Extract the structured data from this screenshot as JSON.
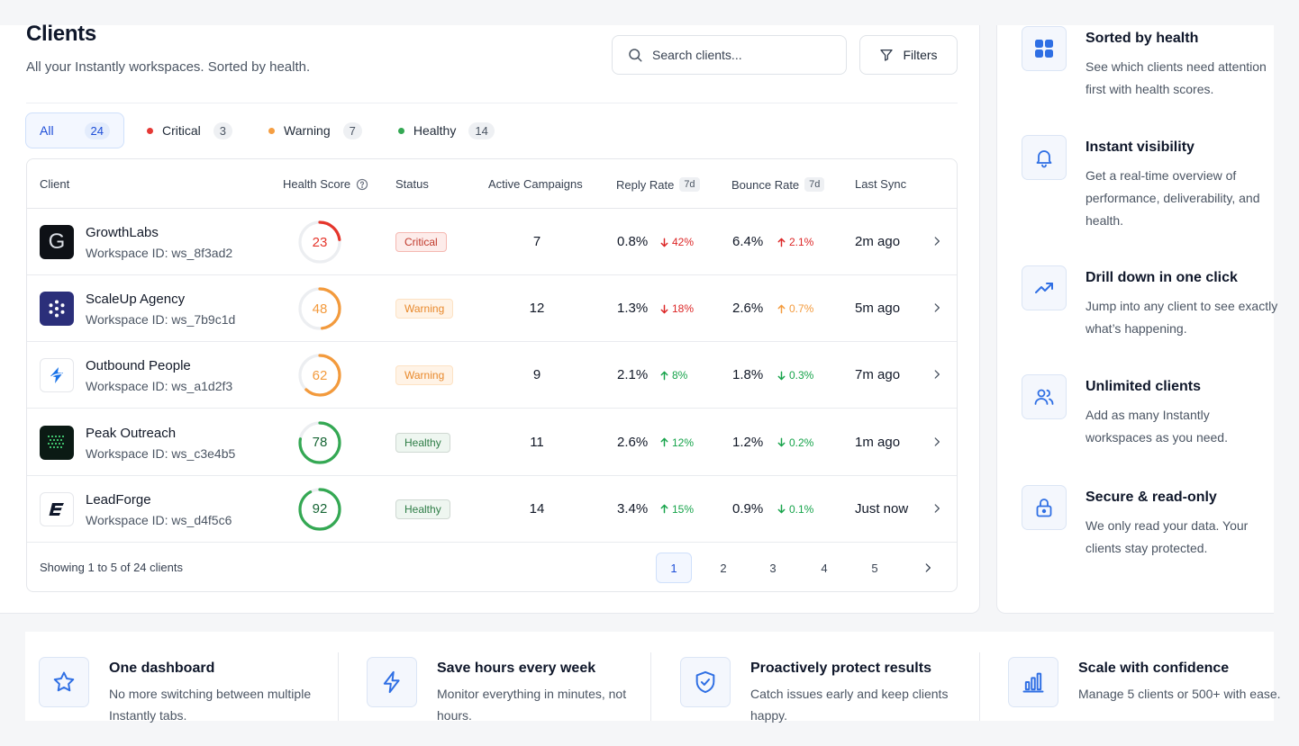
{
  "header": {
    "title": "Clients",
    "subtitle": "All your Instantly workspaces. Sorted by health.",
    "search_placeholder": "Search clients...",
    "filters_label": "Filters"
  },
  "tabs": [
    {
      "label": "All",
      "count": "24",
      "dot": ""
    },
    {
      "label": "Critical",
      "count": "3",
      "dot": "#e53935"
    },
    {
      "label": "Warning",
      "count": "7",
      "dot": "#f59e42"
    },
    {
      "label": "Healthy",
      "count": "14",
      "dot": "#34a853"
    }
  ],
  "table": {
    "columns": {
      "client": "Client",
      "health": "Health Score",
      "status": "Status",
      "campaigns": "Active Campaigns",
      "reply": "Reply Rate",
      "reply_period": "7d",
      "bounce": "Bounce Rate",
      "bounce_period": "7d",
      "sync": "Last Sync"
    },
    "rows": [
      {
        "name": "GrowthLabs",
        "workspace": "Workspace ID: ws_8f3ad2",
        "logo": "growthlabs-logo",
        "score": "23",
        "score_value": 23,
        "score_color": "#e5352b",
        "status": "Critical",
        "campaigns": "7",
        "reply": "0.8%",
        "reply_delta": "42%",
        "reply_dir": "down",
        "reply_color": "#dc2626",
        "bounce": "6.4%",
        "bounce_delta": "2.1%",
        "bounce_dir": "up",
        "bounce_color": "#dc2626",
        "sync": "2m ago"
      },
      {
        "name": "ScaleUp Agency",
        "workspace": "Workspace ID: ws_7b9c1d",
        "logo": "scaleup-logo",
        "score": "48",
        "score_value": 48,
        "score_color": "#f39a3c",
        "status": "Warning",
        "campaigns": "12",
        "reply": "1.3%",
        "reply_delta": "18%",
        "reply_dir": "down",
        "reply_color": "#dc2626",
        "bounce": "2.6%",
        "bounce_delta": "0.7%",
        "bounce_dir": "up",
        "bounce_color": "#f39a3c",
        "sync": "5m ago"
      },
      {
        "name": "Outbound People",
        "workspace": "Workspace ID: ws_a1d2f3",
        "logo": "outbound-logo",
        "score": "62",
        "score_value": 62,
        "score_color": "#f39a3c",
        "status": "Warning",
        "campaigns": "9",
        "reply": "2.1%",
        "reply_delta": "8%",
        "reply_dir": "up",
        "reply_color": "#16a34a",
        "bounce": "1.8%",
        "bounce_delta": "0.3%",
        "bounce_dir": "down",
        "bounce_color": "#16a34a",
        "sync": "7m ago"
      },
      {
        "name": "Peak Outreach",
        "workspace": "Workspace ID: ws_c3e4b5",
        "logo": "peak-logo",
        "score": "78",
        "score_value": 78,
        "score_color": "#34a853",
        "status": "Healthy",
        "campaigns": "11",
        "reply": "2.6%",
        "reply_delta": "12%",
        "reply_dir": "up",
        "reply_color": "#16a34a",
        "bounce": "1.2%",
        "bounce_delta": "0.2%",
        "bounce_dir": "down",
        "bounce_color": "#16a34a",
        "sync": "1m ago"
      },
      {
        "name": "LeadForge",
        "workspace": "Workspace ID: ws_d4f5c6",
        "logo": "leadforge-logo",
        "score": "92",
        "score_value": 92,
        "score_color": "#34a853",
        "status": "Healthy",
        "campaigns": "14",
        "reply": "3.4%",
        "reply_delta": "15%",
        "reply_dir": "up",
        "reply_color": "#16a34a",
        "bounce": "0.9%",
        "bounce_delta": "0.1%",
        "bounce_dir": "down",
        "bounce_color": "#16a34a",
        "sync": "Just now"
      }
    ],
    "footer": {
      "showing": "Showing 1 to 5 of 24 clients",
      "pages": [
        "1",
        "2",
        "3",
        "4",
        "5"
      ]
    }
  },
  "side_features": [
    {
      "icon": "grid-icon",
      "title": "Sorted by health",
      "desc": "See which clients need attention first with health scores."
    },
    {
      "icon": "bell-icon",
      "title": "Instant visibility",
      "desc": "Get a real-time overview of performance, deliverability, and health."
    },
    {
      "icon": "trend-up-icon",
      "title": "Drill down in one click",
      "desc": "Jump into any client to see exactly what’s happening."
    },
    {
      "icon": "users-icon",
      "title": "Unlimited clients",
      "desc": "Add as many Instantly workspaces as you need."
    },
    {
      "icon": "lock-icon",
      "title": "Secure & read-only",
      "desc": "We only read your data. Your clients stay protected."
    }
  ],
  "bottom_features": [
    {
      "icon": "star-icon",
      "title": "One dashboard",
      "desc": "No more switching between multiple Instantly tabs."
    },
    {
      "icon": "bolt-icon",
      "title": "Save hours every week",
      "desc": "Monitor everything in minutes, not hours."
    },
    {
      "icon": "shield-check-icon",
      "title": "Proactively protect results",
      "desc": "Catch issues early and keep clients happy."
    },
    {
      "icon": "bar-chart-icon",
      "title": "Scale with confidence",
      "desc": "Manage 5 clients or 500+ with ease."
    }
  ]
}
